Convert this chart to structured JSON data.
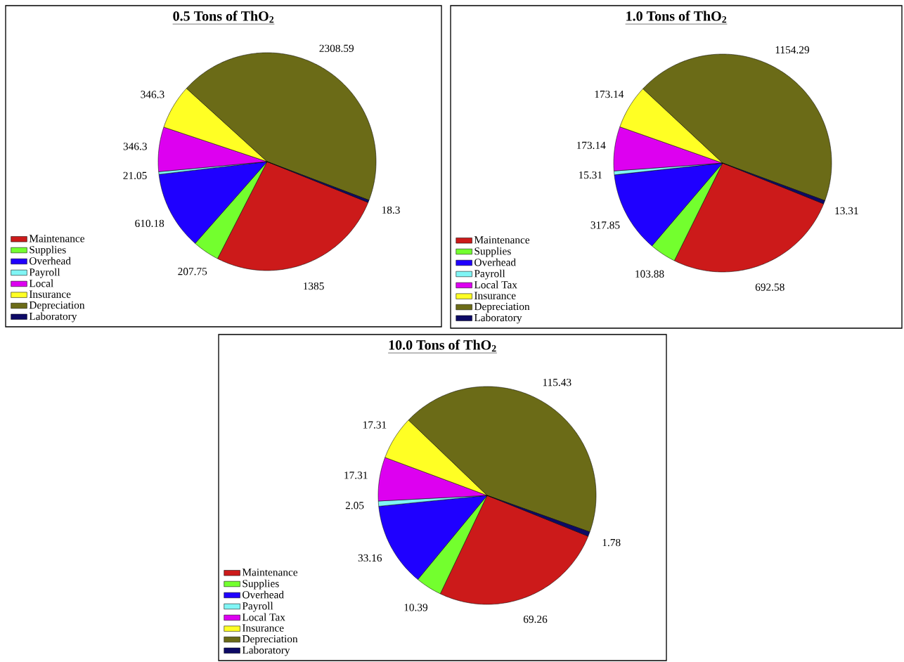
{
  "chart_data": [
    {
      "type": "pie",
      "title": "**0.5 Tons of ThO$_{2}$**",
      "categories": [
        "Maintenance",
        "Supplies",
        "Overhead",
        "Payroll",
        "Local",
        "Insurance",
        "Depreciation",
        "Laboratory"
      ],
      "values": [
        1385,
        207.75,
        610.18,
        21.05,
        346.3,
        346.3,
        2308.59,
        18.3
      ],
      "colors": [
        "#cc1a1a",
        "#73ff2e",
        "#1f00ff",
        "#80f5f5",
        "#dd00f0",
        "#ffff24",
        "#6b6b17",
        "#0d0a66"
      ],
      "data_labels": true,
      "legend": "bottom left"
    },
    {
      "type": "pie",
      "title": "**1.0 Tons of ThO$_{2}$**",
      "categories": [
        "Maintenance",
        "Supplies",
        "Overhead",
        "Payroll",
        "Local Tax",
        "Insurance",
        "Depreciation",
        "Laboratory"
      ],
      "values": [
        692.58,
        103.88,
        317.85,
        15.31,
        173.14,
        173.14,
        1154.29,
        13.31
      ],
      "colors": [
        "#cc1a1a",
        "#73ff2e",
        "#1f00ff",
        "#80f5f5",
        "#dd00f0",
        "#ffff24",
        "#6b6b17",
        "#0d0a66"
      ],
      "data_labels": true,
      "legend": "bottom left"
    },
    {
      "type": "pie",
      "title": "**10.0 Tons of ThO$_{2}$**",
      "categories": [
        "Maintenance",
        "Supplies",
        "Overhead",
        "Payroll",
        "Local Tax",
        "Insurance",
        "Depreciation",
        "Laboratory"
      ],
      "values": [
        69.26,
        10.39,
        33.16,
        2.05,
        17.31,
        17.31,
        115.43,
        1.78
      ],
      "colors": [
        "#cc1a1a",
        "#73ff2e",
        "#1f00ff",
        "#80f5f5",
        "#dd00f0",
        "#ffff24",
        "#6b6b17",
        "#0d0a66"
      ],
      "data_labels": true,
      "legend": "bottom left"
    }
  ]
}
